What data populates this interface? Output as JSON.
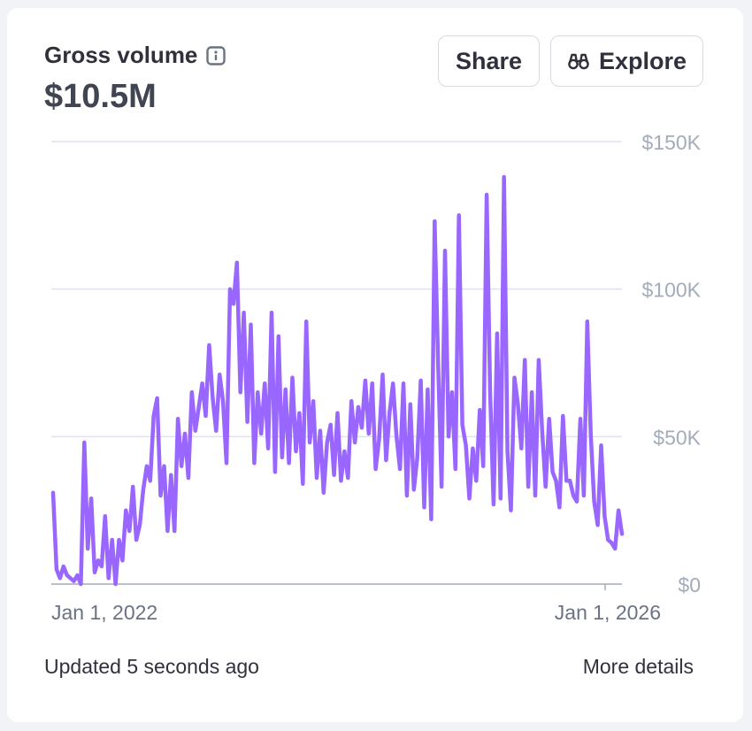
{
  "header": {
    "title": "Gross volume",
    "info_icon": "info-icon",
    "value": "$10.5M"
  },
  "actions": {
    "share_label": "Share",
    "explore_label": "Explore",
    "explore_icon": "binoculars-icon"
  },
  "footer": {
    "updated_text": "Updated 5 seconds ago",
    "details_label": "More details"
  },
  "colors": {
    "line": "#9966ff",
    "grid": "#dfe1f3",
    "axis": "#a3acb9",
    "text": "#30313d"
  },
  "chart_data": {
    "type": "line",
    "x_tick_labels": [
      "Jan 1, 2022",
      "Jan 1, 2026"
    ],
    "y_tick_labels": [
      "$150K",
      "$100K",
      "$50K",
      "$0"
    ],
    "y_ticks": [
      150000,
      100000,
      50000,
      0
    ],
    "ylim": [
      0,
      150000
    ],
    "grid": true,
    "series": [
      {
        "values": [
          31000,
          5000,
          2000,
          6000,
          3000,
          2000,
          1000,
          3000,
          0,
          48000,
          12000,
          29000,
          4000,
          8000,
          6000,
          23000,
          2000,
          15000,
          0,
          15000,
          8000,
          25000,
          18000,
          33000,
          15000,
          20000,
          32000,
          40000,
          35000,
          57000,
          63000,
          30000,
          40000,
          18000,
          37000,
          18000,
          56000,
          40000,
          51000,
          36000,
          65000,
          52000,
          60000,
          68000,
          57000,
          81000,
          63000,
          52000,
          71000,
          62000,
          41000,
          100000,
          95000,
          109000,
          65000,
          92000,
          55000,
          88000,
          41000,
          65000,
          51000,
          68000,
          46000,
          92000,
          38000,
          84000,
          43000,
          66000,
          41000,
          70000,
          45000,
          58000,
          34000,
          89000,
          48000,
          62000,
          36000,
          52000,
          31000,
          48000,
          54000,
          37000,
          58000,
          35000,
          45000,
          36000,
          62000,
          48000,
          60000,
          53000,
          69000,
          51000,
          68000,
          39000,
          49000,
          71000,
          42000,
          58000,
          68000,
          50000,
          39000,
          68000,
          30000,
          61000,
          32000,
          43000,
          69000,
          26000,
          66000,
          22000,
          123000,
          75000,
          33000,
          113000,
          50000,
          65000,
          39000,
          125000,
          54000,
          47000,
          29000,
          46000,
          35000,
          59000,
          40000,
          132000,
          65000,
          27000,
          85000,
          29000,
          138000,
          45000,
          25000,
          70000,
          61000,
          46000,
          76000,
          33000,
          65000,
          30000,
          76000,
          52000,
          33000,
          56000,
          38000,
          35000,
          26000,
          57000,
          35000,
          35000,
          30000,
          28000,
          56000,
          30000,
          89000,
          51000,
          28000,
          20000,
          47000,
          23000,
          15000,
          14000,
          12000,
          25000,
          17000
        ]
      }
    ]
  }
}
